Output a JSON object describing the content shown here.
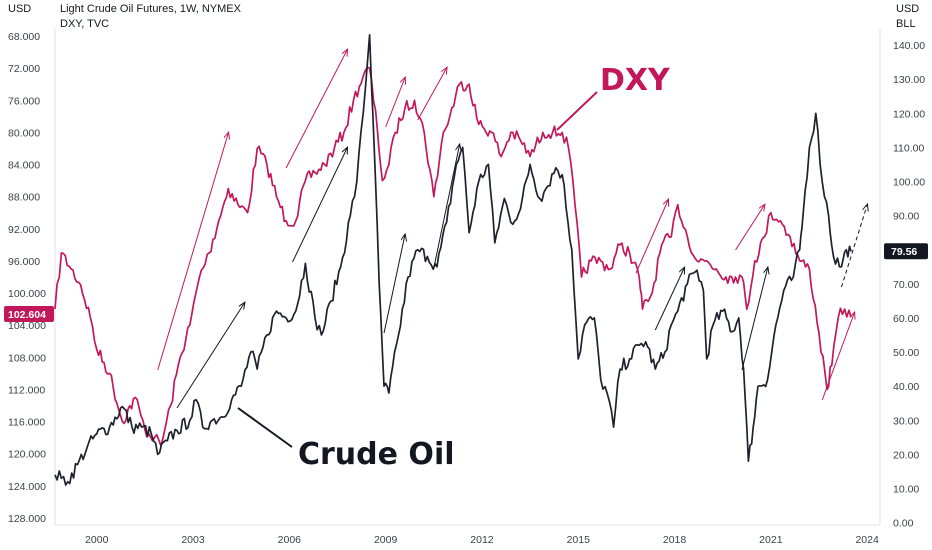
{
  "header": {
    "left_unit": "USD",
    "right_unit_top": "USD",
    "right_unit_bottom": "BLL",
    "title": "Light Crude Oil Futures, 1W, NYMEX",
    "subtitle": "DXY, TVC"
  },
  "chart_data": {
    "type": "line",
    "x_ticks": [
      "2000",
      "2003",
      "2006",
      "2009",
      "2012",
      "2015",
      "2018",
      "2021",
      "2024"
    ],
    "x_range": [
      1998.7,
      2024.4
    ],
    "left_axis": {
      "label": "DXY (inverted)",
      "ticks": [
        "68.000",
        "72.000",
        "76.000",
        "80.000",
        "84.000",
        "88.000",
        "92.000",
        "96.000",
        "100.000",
        "104.000",
        "108.000",
        "112.000",
        "116.000",
        "120.000",
        "124.000",
        "128.000"
      ],
      "range": [
        67,
        129
      ],
      "inverted": true,
      "current_value": "102.604"
    },
    "right_axis": {
      "label": "Crude Oil",
      "ticks": [
        "140.00",
        "130.00",
        "120.00",
        "110.00",
        "100.00",
        "90.00",
        "80.00",
        "70.00",
        "60.00",
        "50.00",
        "40.00",
        "30.00",
        "20.00",
        "10.00",
        "0.00"
      ],
      "range": [
        -1,
        145
      ],
      "current_value": "79.56"
    },
    "series": [
      {
        "name": "DXY",
        "axis": "left",
        "color": "#c2185b",
        "points": [
          [
            1998.7,
            102
          ],
          [
            1998.9,
            95
          ],
          [
            1999.2,
            97
          ],
          [
            1999.5,
            99
          ],
          [
            1999.8,
            103
          ],
          [
            2000.0,
            107
          ],
          [
            2000.4,
            110
          ],
          [
            2000.8,
            116
          ],
          [
            2001.2,
            113
          ],
          [
            2001.5,
            117
          ],
          [
            2001.8,
            118
          ],
          [
            2002.0,
            119
          ],
          [
            2002.3,
            114
          ],
          [
            2002.6,
            108
          ],
          [
            2002.9,
            104
          ],
          [
            2003.2,
            98
          ],
          [
            2003.5,
            95
          ],
          [
            2003.8,
            91
          ],
          [
            2004.1,
            87
          ],
          [
            2004.4,
            89
          ],
          [
            2004.7,
            90
          ],
          [
            2005.0,
            82
          ],
          [
            2005.3,
            84
          ],
          [
            2005.6,
            88
          ],
          [
            2005.9,
            91
          ],
          [
            2006.2,
            91
          ],
          [
            2006.5,
            86
          ],
          [
            2006.8,
            85
          ],
          [
            2007.1,
            84
          ],
          [
            2007.4,
            82
          ],
          [
            2007.7,
            80
          ],
          [
            2008.0,
            76
          ],
          [
            2008.3,
            73
          ],
          [
            2008.5,
            72
          ],
          [
            2008.75,
            80
          ],
          [
            2008.9,
            86
          ],
          [
            2009.1,
            84
          ],
          [
            2009.3,
            80
          ],
          [
            2009.6,
            77
          ],
          [
            2009.9,
            76
          ],
          [
            2010.2,
            80
          ],
          [
            2010.5,
            88
          ],
          [
            2010.8,
            80
          ],
          [
            2011.0,
            78
          ],
          [
            2011.3,
            74
          ],
          [
            2011.6,
            74
          ],
          [
            2011.9,
            79
          ],
          [
            2012.3,
            80
          ],
          [
            2012.6,
            83
          ],
          [
            2012.9,
            80
          ],
          [
            2013.2,
            81
          ],
          [
            2013.5,
            83
          ],
          [
            2013.9,
            80
          ],
          [
            2014.2,
            80
          ],
          [
            2014.5,
            80
          ],
          [
            2014.7,
            82
          ],
          [
            2014.9,
            89
          ],
          [
            2015.1,
            98
          ],
          [
            2015.4,
            96
          ],
          [
            2015.7,
            96
          ],
          [
            2016.0,
            97
          ],
          [
            2016.3,
            94
          ],
          [
            2016.6,
            95
          ],
          [
            2016.9,
            98
          ],
          [
            2017.0,
            102
          ],
          [
            2017.3,
            100
          ],
          [
            2017.6,
            94
          ],
          [
            2017.9,
            93
          ],
          [
            2018.1,
            89
          ],
          [
            2018.4,
            93
          ],
          [
            2018.7,
            96
          ],
          [
            2019.0,
            96
          ],
          [
            2019.3,
            97
          ],
          [
            2019.6,
            98
          ],
          [
            2019.9,
            98
          ],
          [
            2020.1,
            98
          ],
          [
            2020.25,
            102
          ],
          [
            2020.5,
            96
          ],
          [
            2020.8,
            93
          ],
          [
            2021.0,
            90
          ],
          [
            2021.3,
            91
          ],
          [
            2021.6,
            93
          ],
          [
            2021.9,
            96
          ],
          [
            2022.2,
            97
          ],
          [
            2022.5,
            105
          ],
          [
            2022.75,
            112
          ],
          [
            2022.9,
            109
          ],
          [
            2023.1,
            103
          ],
          [
            2023.3,
            102
          ],
          [
            2023.5,
            103
          ]
        ]
      },
      {
        "name": "Crude Oil",
        "axis": "right",
        "color": "#1e222d",
        "points": [
          [
            1998.7,
            14
          ],
          [
            1998.9,
            13
          ],
          [
            1999.1,
            12
          ],
          [
            1999.4,
            17
          ],
          [
            1999.7,
            22
          ],
          [
            2000.0,
            26
          ],
          [
            2000.4,
            28
          ],
          [
            2000.8,
            34
          ],
          [
            2001.1,
            28
          ],
          [
            2001.4,
            28
          ],
          [
            2001.7,
            26
          ],
          [
            2001.9,
            20
          ],
          [
            2002.2,
            24
          ],
          [
            2002.5,
            27
          ],
          [
            2002.9,
            30
          ],
          [
            2003.1,
            36
          ],
          [
            2003.3,
            28
          ],
          [
            2003.6,
            30
          ],
          [
            2003.9,
            31
          ],
          [
            2004.2,
            36
          ],
          [
            2004.5,
            40
          ],
          [
            2004.8,
            50
          ],
          [
            2005.0,
            45
          ],
          [
            2005.3,
            55
          ],
          [
            2005.6,
            62
          ],
          [
            2005.9,
            60
          ],
          [
            2006.2,
            62
          ],
          [
            2006.5,
            76
          ],
          [
            2006.8,
            60
          ],
          [
            2007.0,
            55
          ],
          [
            2007.3,
            65
          ],
          [
            2007.6,
            75
          ],
          [
            2007.9,
            90
          ],
          [
            2008.1,
            100
          ],
          [
            2008.3,
            120
          ],
          [
            2008.5,
            143
          ],
          [
            2008.6,
            120
          ],
          [
            2008.8,
            70
          ],
          [
            2008.95,
            40
          ],
          [
            2009.1,
            38
          ],
          [
            2009.4,
            55
          ],
          [
            2009.7,
            72
          ],
          [
            2010.0,
            80
          ],
          [
            2010.3,
            78
          ],
          [
            2010.6,
            75
          ],
          [
            2010.9,
            88
          ],
          [
            2011.2,
            105
          ],
          [
            2011.4,
            110
          ],
          [
            2011.6,
            85
          ],
          [
            2011.9,
            100
          ],
          [
            2012.2,
            105
          ],
          [
            2012.4,
            82
          ],
          [
            2012.7,
            95
          ],
          [
            2012.9,
            88
          ],
          [
            2013.2,
            92
          ],
          [
            2013.5,
            105
          ],
          [
            2013.8,
            95
          ],
          [
            2014.0,
            98
          ],
          [
            2014.3,
            104
          ],
          [
            2014.5,
            102
          ],
          [
            2014.8,
            80
          ],
          [
            2015.0,
            48
          ],
          [
            2015.2,
            58
          ],
          [
            2015.5,
            60
          ],
          [
            2015.7,
            42
          ],
          [
            2015.9,
            38
          ],
          [
            2016.1,
            28
          ],
          [
            2016.3,
            45
          ],
          [
            2016.6,
            48
          ],
          [
            2016.9,
            52
          ],
          [
            2017.1,
            53
          ],
          [
            2017.4,
            45
          ],
          [
            2017.7,
            50
          ],
          [
            2017.9,
            58
          ],
          [
            2018.1,
            62
          ],
          [
            2018.4,
            70
          ],
          [
            2018.7,
            74
          ],
          [
            2018.9,
            68
          ],
          [
            2019.0,
            48
          ],
          [
            2019.2,
            58
          ],
          [
            2019.5,
            62
          ],
          [
            2019.8,
            56
          ],
          [
            2020.0,
            60
          ],
          [
            2020.15,
            45
          ],
          [
            2020.3,
            18
          ],
          [
            2020.45,
            28
          ],
          [
            2020.6,
            40
          ],
          [
            2020.9,
            42
          ],
          [
            2021.1,
            55
          ],
          [
            2021.4,
            68
          ],
          [
            2021.7,
            72
          ],
          [
            2021.9,
            80
          ],
          [
            2022.0,
            90
          ],
          [
            2022.2,
            110
          ],
          [
            2022.4,
            120
          ],
          [
            2022.6,
            100
          ],
          [
            2022.8,
            90
          ],
          [
            2022.95,
            78
          ],
          [
            2023.2,
            75
          ],
          [
            2023.35,
            80
          ],
          [
            2023.5,
            79.5
          ]
        ]
      }
    ],
    "annotations": [
      {
        "text": "DXY",
        "color": "#c2185b"
      },
      {
        "text": "Crude Oil",
        "color": "#131722"
      }
    ],
    "grid": false
  },
  "colors": {
    "dxy": "#c2185b",
    "oil": "#1e222d",
    "axis_text": "#3b3f4a"
  }
}
